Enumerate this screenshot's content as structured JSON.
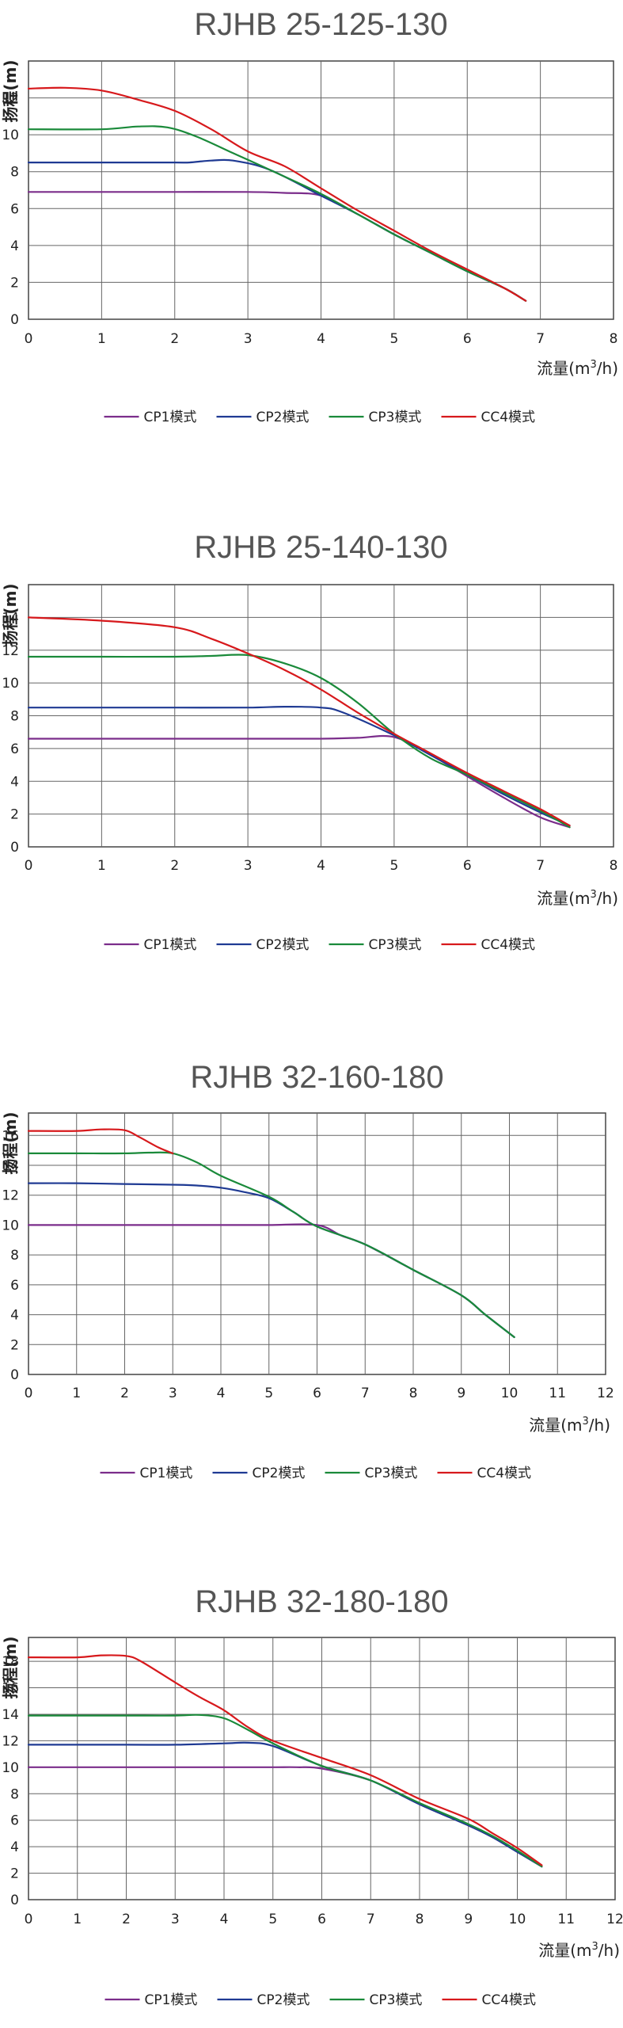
{
  "chart_data": [
    {
      "type": "line",
      "title": "RJHB 25-125-130",
      "xlabel": "流量(m",
      "xlabel_sup": "3",
      "xlabel_tail": "/h)",
      "ylabel": "扬程(m)",
      "xlim": [
        0,
        8
      ],
      "ylim": [
        0,
        14
      ],
      "x_ticks": [
        "0",
        "1",
        "2",
        "3",
        "4",
        "5",
        "6",
        "7",
        "8"
      ],
      "y_ticks": [
        "0",
        "2",
        "4",
        "6",
        "8",
        "10",
        "12"
      ],
      "grid": true,
      "legend_position": "bottom",
      "series": [
        {
          "name": "CP1模式",
          "color": "#7b2d8b",
          "points": [
            [
              0,
              6.9
            ],
            [
              1,
              6.9
            ],
            [
              2,
              6.9
            ],
            [
              3,
              6.9
            ],
            [
              3.5,
              6.85
            ],
            [
              4,
              6.7
            ],
            [
              4.5,
              5.7
            ],
            [
              5,
              4.6
            ],
            [
              5.5,
              3.6
            ],
            [
              6,
              2.6
            ],
            [
              6.5,
              1.7
            ],
            [
              6.8,
              1.0
            ]
          ]
        },
        {
          "name": "CP2模式",
          "color": "#1f3a93",
          "points": [
            [
              0,
              8.5
            ],
            [
              1,
              8.5
            ],
            [
              2,
              8.5
            ],
            [
              2.2,
              8.5
            ],
            [
              2.5,
              8.6
            ],
            [
              2.8,
              8.6
            ],
            [
              3.3,
              8.1
            ],
            [
              4,
              6.7
            ],
            [
              4.5,
              5.7
            ],
            [
              5,
              4.6
            ],
            [
              5.5,
              3.6
            ],
            [
              6,
              2.6
            ],
            [
              6.5,
              1.7
            ],
            [
              6.8,
              1.0
            ]
          ]
        },
        {
          "name": "CP3模式",
          "color": "#1a8a3a",
          "points": [
            [
              0,
              10.3
            ],
            [
              1,
              10.3
            ],
            [
              1.5,
              10.45
            ],
            [
              1.9,
              10.4
            ],
            [
              2.3,
              9.9
            ],
            [
              2.8,
              9.0
            ],
            [
              3.3,
              8.1
            ],
            [
              4,
              6.8
            ],
            [
              4.5,
              5.7
            ],
            [
              5,
              4.6
            ],
            [
              5.5,
              3.6
            ],
            [
              6,
              2.6
            ],
            [
              6.5,
              1.7
            ],
            [
              6.8,
              1.0
            ]
          ]
        },
        {
          "name": "CC4模式",
          "color": "#d7191c",
          "points": [
            [
              0,
              12.5
            ],
            [
              0.5,
              12.55
            ],
            [
              1,
              12.4
            ],
            [
              1.5,
              11.9
            ],
            [
              2,
              11.3
            ],
            [
              2.5,
              10.3
            ],
            [
              3,
              9.1
            ],
            [
              3.5,
              8.3
            ],
            [
              4,
              7.1
            ],
            [
              4.5,
              5.9
            ],
            [
              5,
              4.8
            ],
            [
              5.5,
              3.7
            ],
            [
              6,
              2.7
            ],
            [
              6.5,
              1.7
            ],
            [
              6.8,
              1.0
            ]
          ]
        }
      ]
    },
    {
      "type": "line",
      "title": "RJHB 25-140-130",
      "xlabel": "流量(m",
      "xlabel_sup": "3",
      "xlabel_tail": "/h)",
      "ylabel": "扬程(m)",
      "xlim": [
        0,
        8
      ],
      "ylim": [
        0,
        16
      ],
      "x_ticks": [
        "0",
        "1",
        "2",
        "3",
        "4",
        "5",
        "6",
        "7",
        "8"
      ],
      "y_ticks": [
        "0",
        "2",
        "4",
        "6",
        "8",
        "10",
        "12",
        "14"
      ],
      "grid": true,
      "legend_position": "bottom",
      "series": [
        {
          "name": "CP1模式",
          "color": "#7b2d8b",
          "points": [
            [
              0,
              6.6
            ],
            [
              1,
              6.6
            ],
            [
              2,
              6.6
            ],
            [
              3,
              6.6
            ],
            [
              4,
              6.6
            ],
            [
              4.5,
              6.65
            ],
            [
              5,
              6.7
            ],
            [
              5.5,
              5.6
            ],
            [
              6,
              4.3
            ],
            [
              6.5,
              3.0
            ],
            [
              7,
              1.8
            ],
            [
              7.4,
              1.2
            ]
          ]
        },
        {
          "name": "CP2模式",
          "color": "#1f3a93",
          "points": [
            [
              0,
              8.5
            ],
            [
              1,
              8.5
            ],
            [
              2,
              8.5
            ],
            [
              3,
              8.5
            ],
            [
              3.5,
              8.55
            ],
            [
              4,
              8.5
            ],
            [
              4.3,
              8.2
            ],
            [
              5,
              6.8
            ],
            [
              5.5,
              5.6
            ],
            [
              6,
              4.4
            ],
            [
              6.5,
              3.2
            ],
            [
              7,
              2.1
            ],
            [
              7.4,
              1.3
            ]
          ]
        },
        {
          "name": "CP3模式",
          "color": "#1a8a3a",
          "points": [
            [
              0,
              11.6
            ],
            [
              1,
              11.6
            ],
            [
              2,
              11.6
            ],
            [
              2.5,
              11.65
            ],
            [
              3,
              11.7
            ],
            [
              3.5,
              11.2
            ],
            [
              4,
              10.3
            ],
            [
              4.5,
              8.8
            ],
            [
              5,
              6.9
            ],
            [
              5.5,
              5.4
            ],
            [
              6,
              4.4
            ],
            [
              6.5,
              3.3
            ],
            [
              7,
              2.2
            ],
            [
              7.4,
              1.2
            ]
          ]
        },
        {
          "name": "CC4模式",
          "color": "#d7191c",
          "points": [
            [
              0,
              14.0
            ],
            [
              1,
              13.8
            ],
            [
              2,
              13.4
            ],
            [
              2.5,
              12.7
            ],
            [
              3,
              11.8
            ],
            [
              3.5,
              10.8
            ],
            [
              4,
              9.6
            ],
            [
              4.5,
              8.2
            ],
            [
              5,
              6.9
            ],
            [
              5.5,
              5.7
            ],
            [
              6,
              4.5
            ],
            [
              6.5,
              3.4
            ],
            [
              7,
              2.3
            ],
            [
              7.4,
              1.3
            ]
          ]
        }
      ]
    },
    {
      "type": "line",
      "title": "RJHB 32-160-180",
      "xlabel": "流量(m",
      "xlabel_sup": "3",
      "xlabel_tail": "/h)",
      "ylabel": "扬程(m)",
      "xlim": [
        0,
        12
      ],
      "ylim": [
        0,
        17.5
      ],
      "x_ticks": [
        "0",
        "1",
        "2",
        "3",
        "4",
        "5",
        "6",
        "7",
        "8",
        "9",
        "10",
        "11",
        "12"
      ],
      "y_ticks": [
        "0",
        "2",
        "4",
        "6",
        "8",
        "10",
        "12",
        "14",
        "16"
      ],
      "grid": true,
      "legend_position": "bottom",
      "series": [
        {
          "name": "CP1模式",
          "color": "#7b2d8b",
          "points": [
            [
              0,
              10.0
            ],
            [
              2,
              10.0
            ],
            [
              4,
              10.0
            ],
            [
              5,
              10.0
            ],
            [
              6,
              10.0
            ],
            [
              6.5,
              9.3
            ],
            [
              7,
              8.7
            ],
            [
              8,
              7.0
            ],
            [
              9,
              5.3
            ],
            [
              9.5,
              4.0
            ],
            [
              10.1,
              2.5
            ]
          ]
        },
        {
          "name": "CP2模式",
          "color": "#1f3a93",
          "points": [
            [
              0,
              12.8
            ],
            [
              1,
              12.8
            ],
            [
              2,
              12.75
            ],
            [
              3,
              12.7
            ],
            [
              3.5,
              12.65
            ],
            [
              4,
              12.5
            ],
            [
              4.5,
              12.2
            ],
            [
              5,
              11.8
            ],
            [
              5.5,
              10.9
            ],
            [
              6,
              9.9
            ],
            [
              7,
              8.7
            ],
            [
              8,
              7.0
            ],
            [
              9,
              5.3
            ],
            [
              9.5,
              4.0
            ],
            [
              10.1,
              2.5
            ]
          ]
        },
        {
          "name": "CP3模式",
          "color": "#1a8a3a",
          "points": [
            [
              0,
              14.8
            ],
            [
              1,
              14.8
            ],
            [
              2,
              14.8
            ],
            [
              2.5,
              14.85
            ],
            [
              3,
              14.8
            ],
            [
              3.5,
              14.2
            ],
            [
              4,
              13.3
            ],
            [
              5,
              11.9
            ],
            [
              5.5,
              10.9
            ],
            [
              6,
              9.9
            ],
            [
              7,
              8.7
            ],
            [
              8,
              7.0
            ],
            [
              9,
              5.3
            ],
            [
              9.5,
              4.0
            ],
            [
              10.1,
              2.5
            ]
          ]
        },
        {
          "name": "CC4模式",
          "color": "#d7191c",
          "points": [
            [
              0,
              16.3
            ],
            [
              1,
              16.3
            ],
            [
              1.5,
              16.4
            ],
            [
              2,
              16.35
            ],
            [
              2.3,
              15.9
            ],
            [
              2.7,
              15.2
            ],
            [
              3,
              14.8
            ]
          ]
        }
      ]
    },
    {
      "type": "line",
      "title": "RJHB 32-180-180",
      "xlabel": "流量(m",
      "xlabel_sup": "3",
      "xlabel_tail": "/h)",
      "ylabel": "扬程(m)",
      "xlim": [
        0,
        12
      ],
      "ylim": [
        0,
        19.8
      ],
      "x_ticks": [
        "0",
        "1",
        "2",
        "3",
        "4",
        "5",
        "6",
        "7",
        "8",
        "9",
        "10",
        "11",
        "12"
      ],
      "y_ticks": [
        "0",
        "2",
        "4",
        "6",
        "8",
        "10",
        "12",
        "14",
        "16",
        "18"
      ],
      "grid": true,
      "legend_position": "bottom",
      "series": [
        {
          "name": "CP1模式",
          "color": "#7b2d8b",
          "points": [
            [
              0,
              10.0
            ],
            [
              2,
              10.0
            ],
            [
              4,
              10.0
            ],
            [
              5,
              10.0
            ],
            [
              5.5,
              10.0
            ],
            [
              6,
              9.9
            ],
            [
              7,
              9.0
            ],
            [
              8,
              7.2
            ],
            [
              9,
              5.6
            ],
            [
              9.5,
              4.7
            ],
            [
              10,
              3.6
            ],
            [
              10.5,
              2.5
            ]
          ]
        },
        {
          "name": "CP2模式",
          "color": "#1f3a93",
          "points": [
            [
              0,
              11.7
            ],
            [
              2,
              11.7
            ],
            [
              3,
              11.7
            ],
            [
              4,
              11.8
            ],
            [
              4.5,
              11.85
            ],
            [
              5,
              11.6
            ],
            [
              6,
              10.1
            ],
            [
              7,
              9.0
            ],
            [
              8,
              7.2
            ],
            [
              9,
              5.6
            ],
            [
              9.5,
              4.7
            ],
            [
              10,
              3.6
            ],
            [
              10.5,
              2.5
            ]
          ]
        },
        {
          "name": "CP3模式",
          "color": "#1a8a3a",
          "points": [
            [
              0,
              13.9
            ],
            [
              1,
              13.9
            ],
            [
              2,
              13.9
            ],
            [
              3,
              13.9
            ],
            [
              3.5,
              13.95
            ],
            [
              4,
              13.7
            ],
            [
              4.5,
              12.8
            ],
            [
              5,
              11.8
            ],
            [
              6,
              10.1
            ],
            [
              7,
              9.0
            ],
            [
              8,
              7.3
            ],
            [
              9,
              5.7
            ],
            [
              9.5,
              4.8
            ],
            [
              10,
              3.7
            ],
            [
              10.5,
              2.5
            ]
          ]
        },
        {
          "name": "CC4模式",
          "color": "#d7191c",
          "points": [
            [
              0,
              18.3
            ],
            [
              1,
              18.3
            ],
            [
              1.5,
              18.45
            ],
            [
              2,
              18.4
            ],
            [
              2.3,
              18.0
            ],
            [
              3,
              16.4
            ],
            [
              3.5,
              15.3
            ],
            [
              4,
              14.3
            ],
            [
              4.5,
              13.0
            ],
            [
              5,
              12.0
            ],
            [
              6,
              10.7
            ],
            [
              7,
              9.4
            ],
            [
              8,
              7.6
            ],
            [
              9,
              6.1
            ],
            [
              9.5,
              5.0
            ],
            [
              10,
              3.9
            ],
            [
              10.5,
              2.6
            ]
          ]
        }
      ]
    }
  ]
}
